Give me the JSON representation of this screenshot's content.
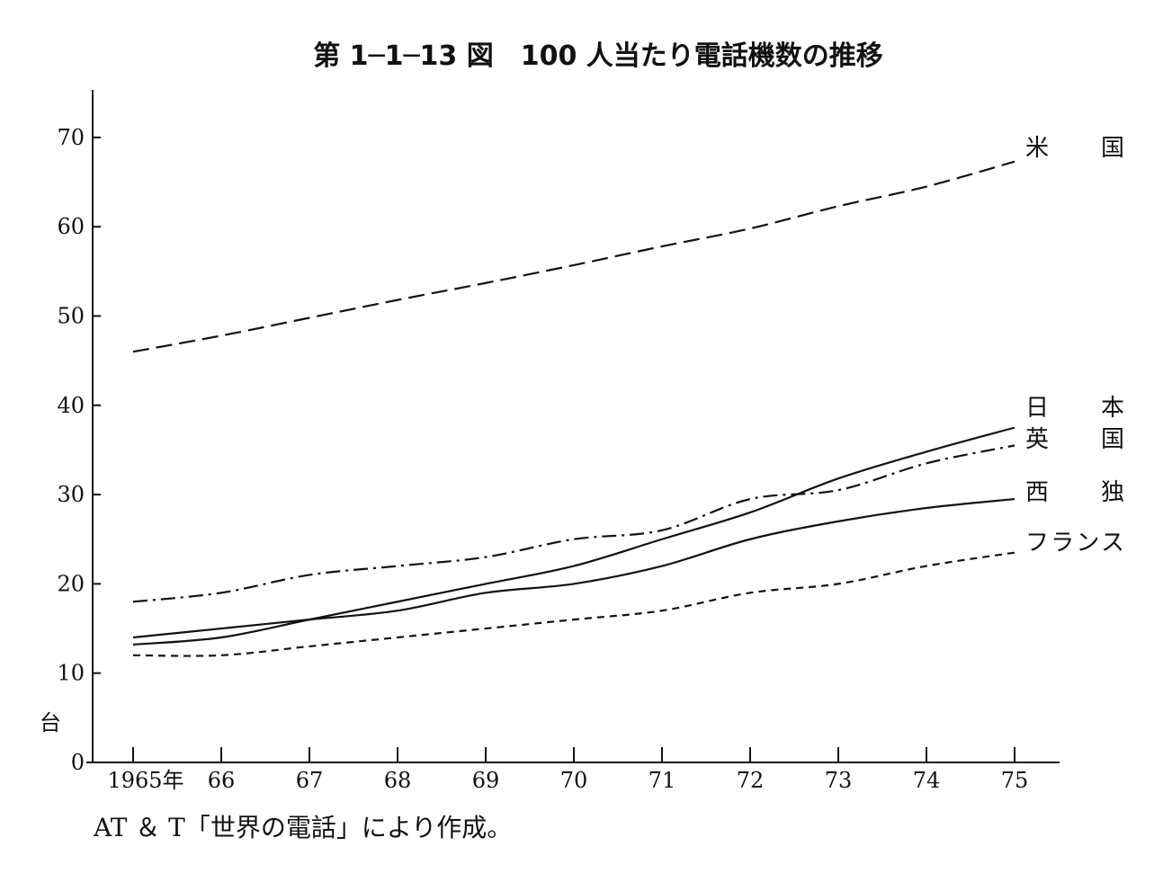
{
  "chart_data": {
    "type": "line",
    "title": "第 1─1─13 図　100 人当たり電話機数の推移",
    "ylabel": "台",
    "xlabel": "",
    "x": [
      1965,
      1966,
      1967,
      1968,
      1969,
      1970,
      1971,
      1972,
      1973,
      1974,
      1975
    ],
    "x_tick_labels": [
      "1965年",
      "66",
      "67",
      "68",
      "69",
      "70",
      "71",
      "72",
      "73",
      "74",
      "75"
    ],
    "y_ticks": [
      0,
      10,
      20,
      30,
      40,
      50,
      60,
      70
    ],
    "ylim": [
      0,
      75
    ],
    "grid": false,
    "series": [
      {
        "name": "米　　国",
        "style": "dashed",
        "values": [
          46,
          47.8,
          49.8,
          51.8,
          53.7,
          55.7,
          57.8,
          59.8,
          62.3,
          64.5,
          67.3
        ]
      },
      {
        "name": "日　　本",
        "style": "solid",
        "values": [
          13.2,
          14.0,
          16.0,
          18.0,
          20.0,
          22.0,
          25.0,
          28.0,
          31.8,
          34.8,
          37.5
        ]
      },
      {
        "name": "英　　国",
        "style": "dashdot",
        "values": [
          18.0,
          19.0,
          21.0,
          22.0,
          23.0,
          25.0,
          26.0,
          29.5,
          30.5,
          33.5,
          35.5
        ]
      },
      {
        "name": "西　　独",
        "style": "solid",
        "values": [
          14.0,
          15.0,
          16.0,
          17.0,
          19.0,
          20.0,
          22.0,
          25.0,
          27.0,
          28.5,
          29.5
        ]
      },
      {
        "name": "フランス",
        "style": "dotted",
        "values": [
          12.0,
          12.0,
          13.0,
          14.0,
          15.0,
          16.0,
          17.0,
          19.0,
          20.0,
          22.0,
          23.5
        ]
      }
    ],
    "source": "AT ＆ T「世界の電話」により作成。"
  }
}
